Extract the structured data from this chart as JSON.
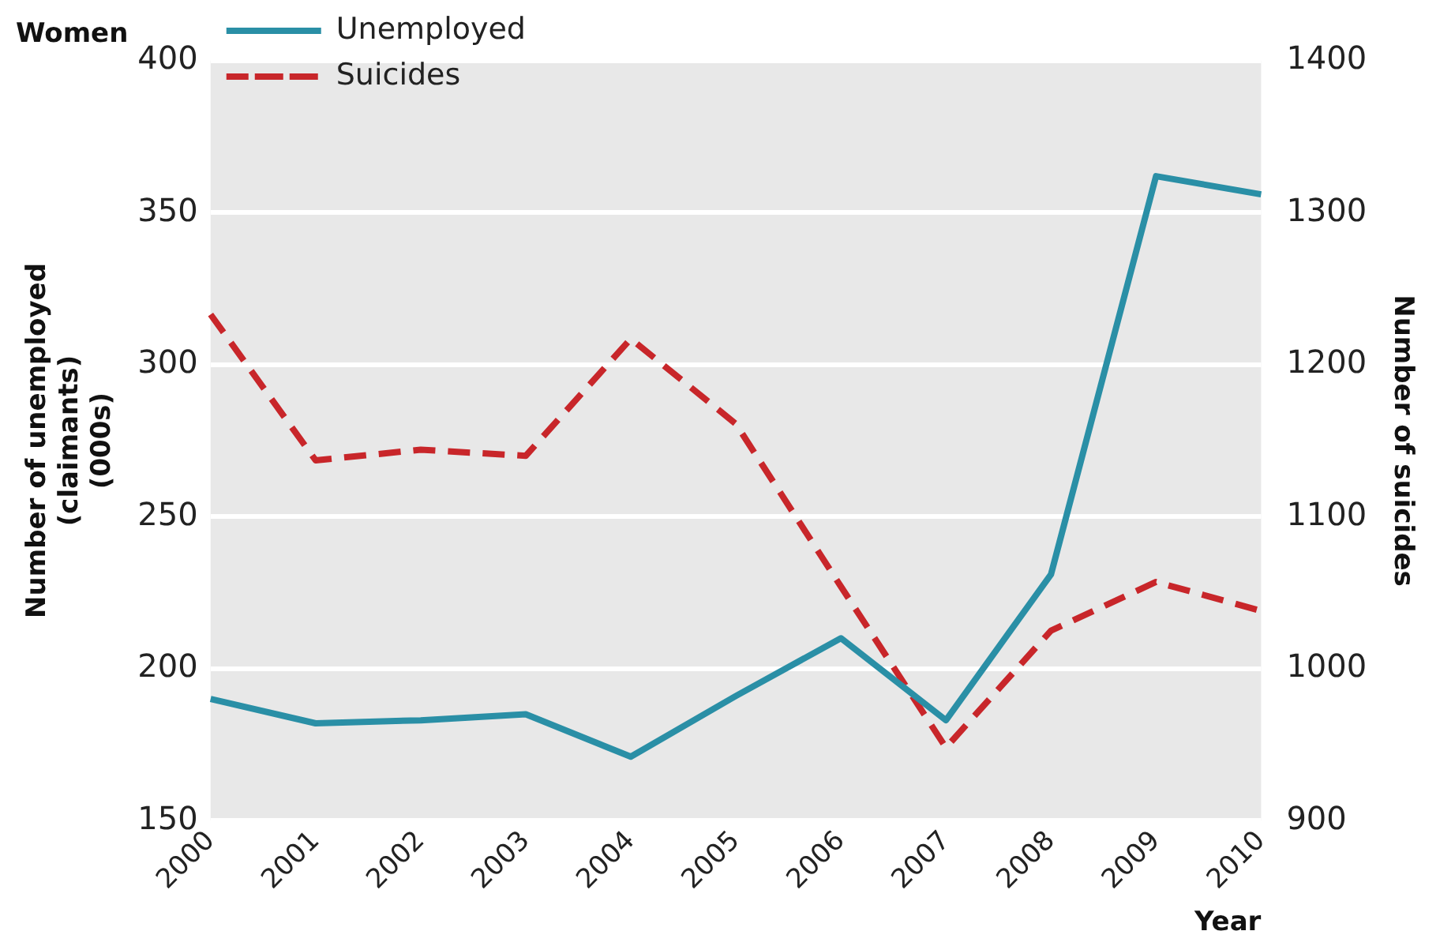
{
  "chart_data": {
    "type": "line",
    "title": "Women",
    "xlabel": "Year",
    "ylabel": "Number of unemployed (claimants) (000s)",
    "y2label": "Number of suicides",
    "categories": [
      "2000",
      "2001",
      "2002",
      "2003",
      "2004",
      "2005",
      "2006",
      "2007",
      "2008",
      "2009",
      "2010"
    ],
    "series": [
      {
        "name": "Unemployed",
        "color": "#2a8fa6",
        "line_style": "solid",
        "values": [
          190,
          182,
          183,
          185,
          171,
          191,
          210,
          183,
          231,
          362,
          356
        ]
      },
      {
        "name": "Suicides",
        "color": "#c8262a",
        "line_style": "dashed",
        "axis": "y2",
        "values": [
          1233,
          1137,
          1144,
          1140,
          1217,
          1161,
          1054,
          948,
          1025,
          1057,
          1038
        ]
      }
    ],
    "ylim": [
      150,
      400
    ],
    "yticks": [
      150,
      200,
      250,
      300,
      350,
      400
    ],
    "y2lim": [
      900,
      1400
    ],
    "y2ticks": [
      900,
      1000,
      1100,
      1200,
      1300,
      1400
    ],
    "grid": "y",
    "legend": "top left",
    "marker": "none"
  }
}
